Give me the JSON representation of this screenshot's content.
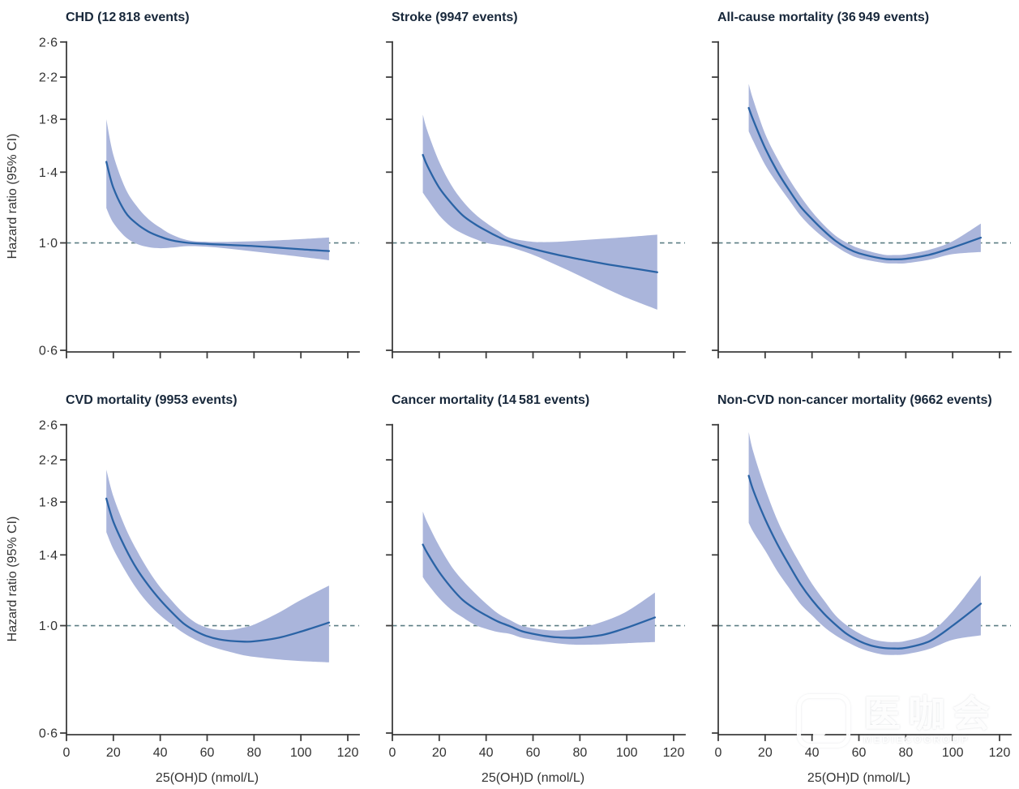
{
  "figure": {
    "x_axis_label": "25(OH)D (nmol/L)",
    "y_axis_label": "Hazard ratio (95% CI)",
    "colors": {
      "curve": "#2a63a5",
      "ci_band": "#aab5db",
      "reference_dash": "#5c7e84",
      "axis": "#3d3d3d",
      "title_text": "#17273a"
    }
  },
  "chart_data": {
    "type": "line",
    "x_axis": {
      "label": "25(OH)D (nmol/L)",
      "ticks": [
        0,
        20,
        40,
        60,
        80,
        100,
        120
      ],
      "range": [
        0,
        125
      ]
    },
    "y_axis": {
      "label": "Hazard ratio (95% CI)",
      "scale": "log",
      "ticks": [
        2.6,
        2.2,
        1.8,
        1.4,
        1.0,
        0.6
      ],
      "tick_labels": [
        "2·6",
        "2·2",
        "1·8",
        "1·4",
        "1·0",
        "0·6"
      ],
      "range": [
        0.6,
        2.6
      ]
    },
    "reference_line": 1.0,
    "grid": false,
    "legend": "none",
    "panels": [
      {
        "title": "CHD (12 818 events)",
        "events": 12818,
        "series": {
          "x": [
            17,
            20,
            25,
            30,
            35,
            40,
            45,
            52,
            60,
            70,
            80,
            90,
            100,
            112
          ],
          "hazard_ratio": [
            1.47,
            1.3,
            1.16,
            1.095,
            1.055,
            1.03,
            1.012,
            1.0,
            0.995,
            0.99,
            0.985,
            0.978,
            0.97,
            0.962
          ],
          "ci_upper": [
            1.8,
            1.52,
            1.3,
            1.19,
            1.12,
            1.075,
            1.04,
            1.012,
            1.005,
            1.005,
            1.008,
            1.012,
            1.018,
            1.026
          ],
          "ci_lower": [
            1.18,
            1.1,
            1.03,
            0.995,
            0.98,
            0.975,
            0.978,
            0.985,
            0.982,
            0.972,
            0.96,
            0.948,
            0.936,
            0.921
          ]
        }
      },
      {
        "title": "Stroke (9947 events)",
        "events": 9947,
        "series": {
          "x": [
            13,
            15,
            20,
            25,
            30,
            35,
            40,
            45,
            50,
            60,
            70,
            80,
            90,
            100,
            113
          ],
          "hazard_ratio": [
            1.52,
            1.44,
            1.3,
            1.21,
            1.14,
            1.095,
            1.06,
            1.03,
            1.005,
            0.972,
            0.946,
            0.925,
            0.906,
            0.89,
            0.87
          ],
          "ci_upper": [
            1.84,
            1.7,
            1.47,
            1.32,
            1.22,
            1.15,
            1.1,
            1.06,
            1.025,
            1.005,
            1.005,
            1.012,
            1.02,
            1.028,
            1.04
          ],
          "ci_lower": [
            1.27,
            1.23,
            1.14,
            1.08,
            1.045,
            1.02,
            1.0,
            0.99,
            0.98,
            0.945,
            0.9,
            0.855,
            0.81,
            0.77,
            0.728
          ]
        }
      },
      {
        "title": "All-cause mortality (36 949 events)",
        "events": 36949,
        "series": {
          "x": [
            13,
            15,
            20,
            25,
            30,
            35,
            40,
            45,
            50,
            55,
            60,
            70,
            75,
            80,
            90,
            100,
            112
          ],
          "hazard_ratio": [
            1.9,
            1.79,
            1.57,
            1.41,
            1.29,
            1.19,
            1.12,
            1.06,
            1.01,
            0.975,
            0.952,
            0.928,
            0.925,
            0.927,
            0.945,
            0.978,
            1.025
          ],
          "ci_upper": [
            2.13,
            1.97,
            1.68,
            1.5,
            1.36,
            1.25,
            1.16,
            1.09,
            1.035,
            1.0,
            0.975,
            0.947,
            0.944,
            0.947,
            0.968,
            1.008,
            1.096
          ],
          "ci_lower": [
            1.7,
            1.62,
            1.45,
            1.33,
            1.23,
            1.14,
            1.075,
            1.025,
            0.985,
            0.952,
            0.93,
            0.91,
            0.907,
            0.908,
            0.923,
            0.948,
            0.958
          ]
        }
      },
      {
        "title": "CVD mortality (9953 events)",
        "events": 9953,
        "series": {
          "x": [
            17,
            20,
            25,
            30,
            35,
            40,
            45,
            50,
            55,
            60,
            65,
            70,
            75,
            80,
            90,
            100,
            112
          ],
          "hazard_ratio": [
            1.83,
            1.64,
            1.45,
            1.31,
            1.21,
            1.13,
            1.065,
            1.01,
            0.975,
            0.951,
            0.937,
            0.93,
            0.927,
            0.928,
            0.943,
            0.972,
            1.015
          ],
          "ci_upper": [
            2.1,
            1.85,
            1.6,
            1.43,
            1.3,
            1.2,
            1.125,
            1.06,
            1.015,
            0.99,
            0.98,
            0.98,
            0.99,
            1.005,
            1.06,
            1.13,
            1.21
          ],
          "ci_lower": [
            1.56,
            1.44,
            1.3,
            1.19,
            1.11,
            1.05,
            1.005,
            0.965,
            0.935,
            0.912,
            0.895,
            0.882,
            0.87,
            0.862,
            0.852,
            0.845,
            0.84
          ]
        }
      },
      {
        "title": "Cancer mortality (14 581 events)",
        "events": 14581,
        "series": {
          "x": [
            13,
            15,
            20,
            25,
            30,
            35,
            40,
            45,
            50,
            55,
            60,
            65,
            70,
            75,
            80,
            90,
            100,
            112
          ],
          "hazard_ratio": [
            1.47,
            1.41,
            1.29,
            1.2,
            1.13,
            1.085,
            1.05,
            1.02,
            0.998,
            0.975,
            0.962,
            0.952,
            0.946,
            0.944,
            0.945,
            0.958,
            0.99,
            1.04
          ],
          "ci_upper": [
            1.72,
            1.63,
            1.46,
            1.33,
            1.24,
            1.17,
            1.11,
            1.06,
            1.028,
            1.0,
            0.988,
            0.98,
            0.977,
            0.98,
            0.988,
            1.02,
            1.07,
            1.17
          ],
          "ci_lower": [
            1.26,
            1.22,
            1.14,
            1.08,
            1.04,
            1.005,
            0.985,
            0.97,
            0.962,
            0.945,
            0.935,
            0.927,
            0.92,
            0.915,
            0.913,
            0.915,
            0.92,
            0.925
          ]
        }
      },
      {
        "title": "Non-CVD non-cancer mortality (9662 events)",
        "events": 9662,
        "series": {
          "x": [
            13,
            15,
            20,
            25,
            30,
            35,
            40,
            45,
            50,
            55,
            60,
            65,
            70,
            75,
            80,
            90,
            100,
            112
          ],
          "hazard_ratio": [
            2.04,
            1.9,
            1.66,
            1.48,
            1.34,
            1.22,
            1.13,
            1.06,
            1.005,
            0.96,
            0.93,
            0.91,
            0.9,
            0.897,
            0.9,
            0.928,
            1.0,
            1.11
          ],
          "ci_upper": [
            2.51,
            2.28,
            1.92,
            1.66,
            1.48,
            1.34,
            1.22,
            1.13,
            1.05,
            1.0,
            0.965,
            0.94,
            0.928,
            0.925,
            0.93,
            0.965,
            1.07,
            1.27
          ],
          "ci_lower": [
            1.63,
            1.56,
            1.43,
            1.3,
            1.2,
            1.11,
            1.05,
            0.995,
            0.955,
            0.925,
            0.9,
            0.883,
            0.872,
            0.87,
            0.873,
            0.895,
            0.935,
            0.955
          ]
        }
      }
    ]
  },
  "watermark": {
    "logo_text": "医咖会",
    "subtext": "MEDIECOGROUP"
  }
}
